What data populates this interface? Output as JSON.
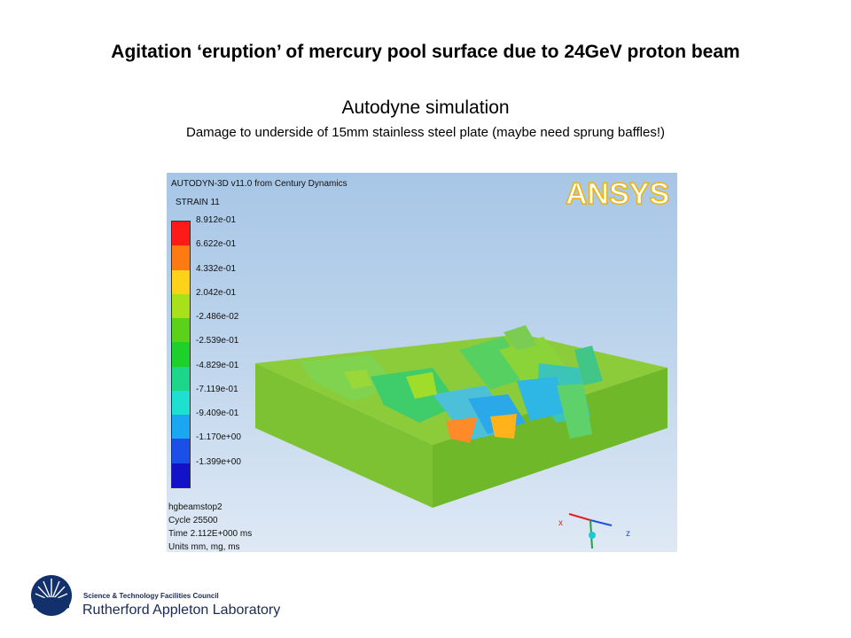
{
  "slide": {
    "title": "Agitation ‘eruption’ of mercury pool surface due to 24GeV proton beam",
    "subtitle": "Autodyne simulation",
    "caption": "Damage to underside of 15mm stainless steel plate (maybe need sprung baffles!)"
  },
  "viewer": {
    "header": "AUTODYN-3D v11.0 from Century Dynamics",
    "logo_text": "ANSYS",
    "variable": "STRAIN 11",
    "legend": [
      {
        "label": "8.912e-01",
        "color": "#ff1a1a"
      },
      {
        "label": "6.622e-01",
        "color": "#ff7a10"
      },
      {
        "label": "4.332e-01",
        "color": "#ffd21a"
      },
      {
        "label": "2.042e-01",
        "color": "#a8e01a"
      },
      {
        "label": "-2.486e-02",
        "color": "#5bd11a"
      },
      {
        "label": "-2.539e-01",
        "color": "#1ed12a"
      },
      {
        "label": "-4.829e-01",
        "color": "#1ed68a"
      },
      {
        "label": "-7.119e-01",
        "color": "#1ee0d0"
      },
      {
        "label": "-9.409e-01",
        "color": "#1aa6f0"
      },
      {
        "label": "-1.170e+00",
        "color": "#1a50e8"
      },
      {
        "label": "-1.399e+00",
        "color": "#1212c8"
      }
    ],
    "info_lines": [
      "hgbeamstop2",
      "Cycle 25500",
      "Time 2.112E+000 ms",
      "Units mm, mg, ms"
    ],
    "axis_labels": {
      "x": "x",
      "z": "z"
    }
  },
  "footer": {
    "org_small": "Science & Technology Facilities Council",
    "org_large": "Rutherford Appleton Laboratory"
  }
}
